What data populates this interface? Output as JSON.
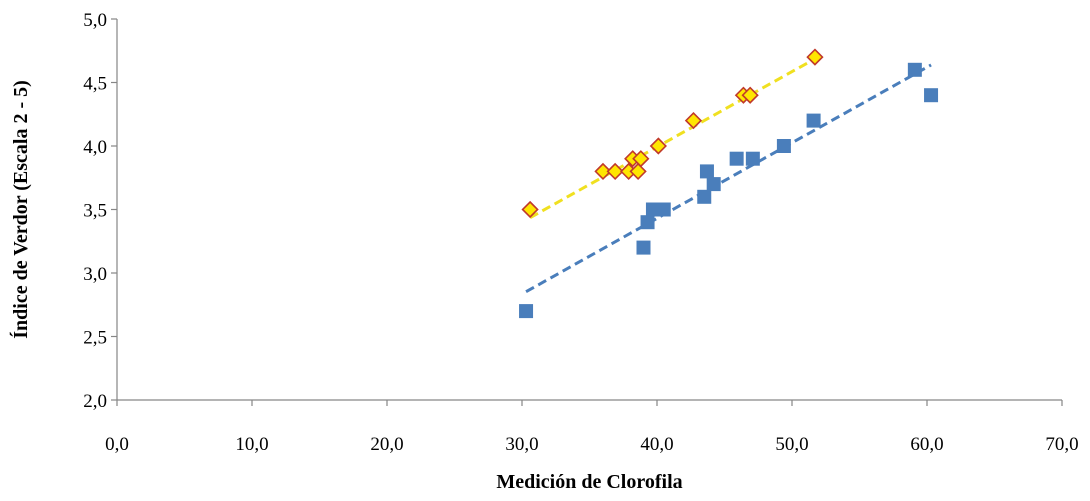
{
  "chart_data": {
    "type": "scatter",
    "title": "",
    "xlabel": "Medición de Clorofila",
    "ylabel": "Índice de Verdor (Escala 2 - 5)",
    "xlim": [
      0,
      70
    ],
    "ylim": [
      2,
      5
    ],
    "x_ticks": [
      "0,0",
      "10,0",
      "20,0",
      "30,0",
      "40,0",
      "50,0",
      "60,0",
      "70,0"
    ],
    "y_ticks": [
      "2,0",
      "2,5",
      "3,0",
      "3,5",
      "4,0",
      "4,5",
      "5,0"
    ],
    "grid": false,
    "legend": "none",
    "series": [
      {
        "marker": "square",
        "color": "#4a7ebb",
        "trendline_color": "#4a7ebb",
        "trendline": "linear, dashed",
        "points": [
          [
            30.3,
            2.7
          ],
          [
            39.0,
            3.2
          ],
          [
            39.3,
            3.4
          ],
          [
            39.7,
            3.5
          ],
          [
            40.5,
            3.5
          ],
          [
            43.5,
            3.6
          ],
          [
            43.7,
            3.8
          ],
          [
            44.2,
            3.7
          ],
          [
            45.9,
            3.9
          ],
          [
            47.1,
            3.9
          ],
          [
            49.4,
            4.0
          ],
          [
            51.6,
            4.2
          ],
          [
            59.1,
            4.6
          ],
          [
            60.3,
            4.4
          ]
        ]
      },
      {
        "marker": "diamond",
        "color": "#ffe600",
        "edge_color": "#c0392b",
        "trendline_color": "#f0e020",
        "trendline": "linear, dashed",
        "points": [
          [
            30.6,
            3.5
          ],
          [
            36.0,
            3.8
          ],
          [
            36.9,
            3.8
          ],
          [
            37.9,
            3.8
          ],
          [
            38.2,
            3.9
          ],
          [
            38.6,
            3.8
          ],
          [
            38.8,
            3.9
          ],
          [
            40.1,
            4.0
          ],
          [
            42.7,
            4.2
          ],
          [
            46.4,
            4.4
          ],
          [
            46.9,
            4.4
          ],
          [
            51.7,
            4.7
          ]
        ]
      }
    ]
  }
}
